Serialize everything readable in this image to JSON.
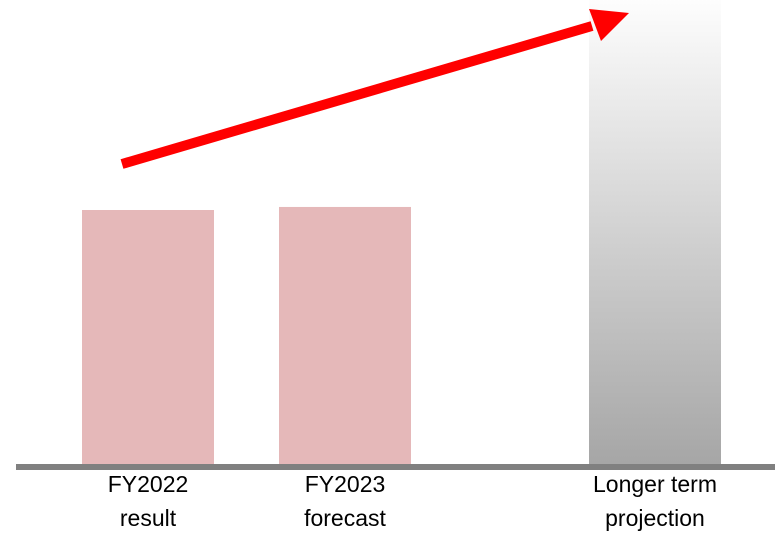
{
  "chart_data": {
    "type": "bar",
    "categories": [
      [
        "FY2022",
        "result"
      ],
      [
        "FY2023",
        "forecast"
      ],
      [
        "Longer term",
        "projection"
      ]
    ],
    "values": [
      50,
      50.6,
      93
    ],
    "ylim": [
      0,
      100
    ],
    "grid": false,
    "legend": "none",
    "title": "",
    "xlabel": "",
    "ylabel": "",
    "annotation": "upward-trend-arrow",
    "colors": {
      "actual_bar": "#e5b8b9",
      "projection_bar_top": "#ffffff",
      "projection_bar_bottom": "#a6a6a6",
      "baseline": "#808080",
      "arrow": "#ff0000"
    }
  }
}
